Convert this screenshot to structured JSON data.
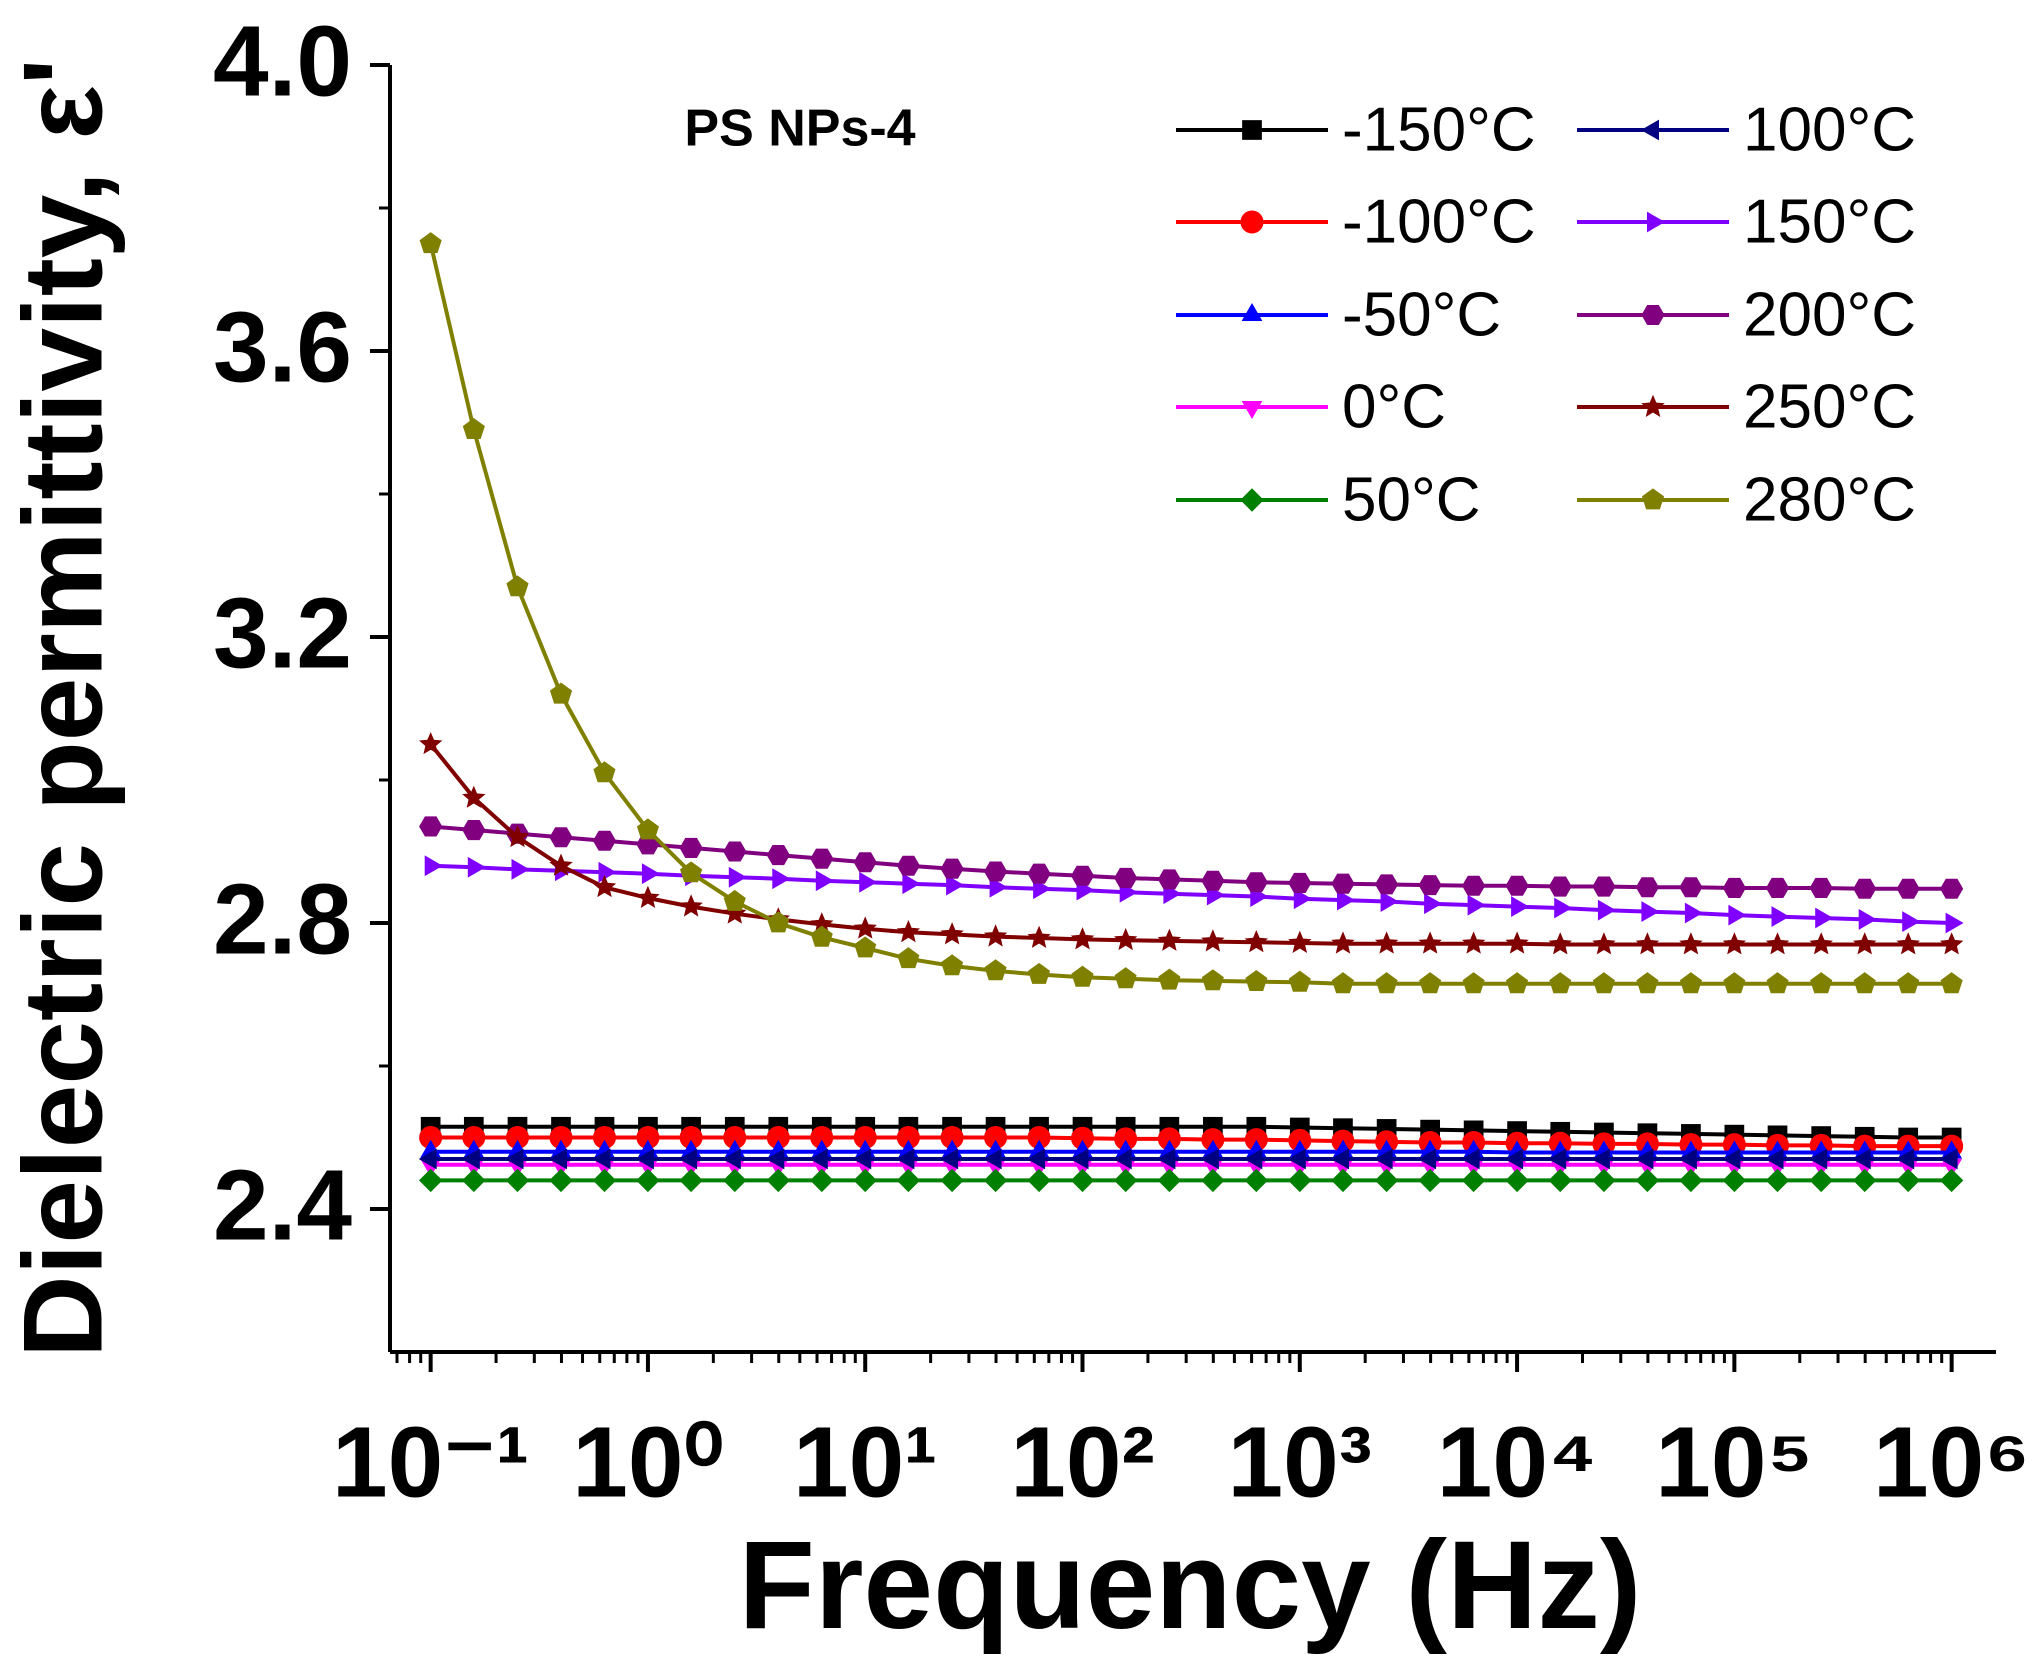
{
  "chart_data": {
    "type": "line",
    "title": "PS NPs-4",
    "xlabel": "Frequency (Hz)",
    "ylabel": "Dielectric permittivity, ε'",
    "xscale": "log",
    "x": [
      0.1,
      0.158,
      0.251,
      0.398,
      0.631,
      1,
      1.58,
      2.51,
      3.98,
      6.31,
      10,
      15.8,
      25.1,
      39.8,
      63.1,
      100,
      158,
      251,
      398,
      631,
      1000,
      1580,
      2510,
      3980,
      6310,
      10000,
      15800,
      25100,
      39800,
      63100,
      100000,
      158000,
      251000,
      398000,
      631000,
      1000000
    ],
    "xlim": [
      0.065,
      1600000
    ],
    "xticks": [
      {
        "value": 0.1,
        "label": "10⁻¹"
      },
      {
        "value": 1,
        "label": "10⁰"
      },
      {
        "value": 10,
        "label": "10¹"
      },
      {
        "value": 100,
        "label": "10²"
      },
      {
        "value": 1000,
        "label": "10³"
      },
      {
        "value": 10000,
        "label": "10⁴"
      },
      {
        "value": 100000,
        "label": "10⁵"
      },
      {
        "value": 1000000,
        "label": "10⁶"
      }
    ],
    "ylim": [
      2.2,
      4.0
    ],
    "yticks": [
      2.4,
      2.8,
      3.2,
      3.6,
      {
        "value": 4,
        "label": "4.0"
      }
    ],
    "grid": false,
    "legend": "upper right",
    "series": [
      {
        "name": "-150°C",
        "color": "#000000",
        "marker": "square",
        "values": [
          2.515,
          2.515,
          2.515,
          2.515,
          2.515,
          2.515,
          2.515,
          2.515,
          2.515,
          2.515,
          2.515,
          2.515,
          2.515,
          2.515,
          2.515,
          2.515,
          2.515,
          2.515,
          2.515,
          2.515,
          2.514,
          2.513,
          2.512,
          2.511,
          2.51,
          2.509,
          2.508,
          2.507,
          2.506,
          2.505,
          2.504,
          2.503,
          2.502,
          2.501,
          2.5,
          2.5
        ]
      },
      {
        "name": "-100°C",
        "color": "#ff0000",
        "marker": "circle",
        "values": [
          2.5,
          2.5,
          2.5,
          2.5,
          2.5,
          2.5,
          2.5,
          2.5,
          2.5,
          2.5,
          2.5,
          2.5,
          2.5,
          2.5,
          2.5,
          2.499,
          2.498,
          2.498,
          2.497,
          2.497,
          2.496,
          2.495,
          2.494,
          2.493,
          2.493,
          2.492,
          2.492,
          2.491,
          2.491,
          2.49,
          2.49,
          2.489,
          2.489,
          2.488,
          2.488,
          2.488
        ]
      },
      {
        "name": "-50°C",
        "color": "#0000ff",
        "marker": "triangle-up",
        "values": [
          2.48,
          2.48,
          2.48,
          2.48,
          2.48,
          2.48,
          2.48,
          2.48,
          2.48,
          2.48,
          2.48,
          2.48,
          2.48,
          2.48,
          2.48,
          2.48,
          2.48,
          2.48,
          2.48,
          2.48,
          2.48,
          2.48,
          2.48,
          2.48,
          2.48,
          2.479,
          2.479,
          2.479,
          2.479,
          2.479,
          2.479,
          2.479,
          2.479,
          2.479,
          2.479,
          2.479
        ]
      },
      {
        "name": "0°C",
        "color": "#ff00ff",
        "marker": "triangle-down",
        "values": [
          2.462,
          2.462,
          2.462,
          2.462,
          2.462,
          2.462,
          2.462,
          2.462,
          2.462,
          2.462,
          2.462,
          2.462,
          2.462,
          2.462,
          2.462,
          2.462,
          2.462,
          2.462,
          2.462,
          2.462,
          2.462,
          2.462,
          2.462,
          2.462,
          2.462,
          2.462,
          2.462,
          2.462,
          2.462,
          2.462,
          2.462,
          2.462,
          2.462,
          2.462,
          2.462,
          2.462
        ]
      },
      {
        "name": "50°C",
        "color": "#008000",
        "marker": "diamond",
        "values": [
          2.44,
          2.44,
          2.44,
          2.44,
          2.44,
          2.44,
          2.44,
          2.44,
          2.44,
          2.44,
          2.44,
          2.44,
          2.44,
          2.44,
          2.44,
          2.44,
          2.44,
          2.44,
          2.44,
          2.44,
          2.44,
          2.44,
          2.44,
          2.44,
          2.44,
          2.44,
          2.44,
          2.44,
          2.44,
          2.44,
          2.44,
          2.44,
          2.44,
          2.44,
          2.44,
          2.44
        ]
      },
      {
        "name": "100°C",
        "color": "#000080",
        "marker": "triangle-left",
        "values": [
          2.47,
          2.47,
          2.47,
          2.47,
          2.47,
          2.47,
          2.47,
          2.47,
          2.47,
          2.47,
          2.47,
          2.47,
          2.47,
          2.47,
          2.47,
          2.47,
          2.47,
          2.47,
          2.47,
          2.47,
          2.47,
          2.47,
          2.47,
          2.47,
          2.47,
          2.47,
          2.47,
          2.47,
          2.47,
          2.47,
          2.47,
          2.47,
          2.47,
          2.47,
          2.47,
          2.47
        ]
      },
      {
        "name": "150°C",
        "color": "#8000ff",
        "marker": "triangle-right",
        "values": [
          2.88,
          2.878,
          2.875,
          2.873,
          2.871,
          2.869,
          2.866,
          2.864,
          2.862,
          2.859,
          2.857,
          2.855,
          2.853,
          2.85,
          2.848,
          2.846,
          2.843,
          2.841,
          2.839,
          2.837,
          2.834,
          2.832,
          2.83,
          2.827,
          2.825,
          2.823,
          2.821,
          2.818,
          2.816,
          2.814,
          2.811,
          2.809,
          2.807,
          2.805,
          2.802,
          2.8
        ]
      },
      {
        "name": "200°C",
        "color": "#800080",
        "marker": "hexagon",
        "values": [
          2.935,
          2.93,
          2.925,
          2.92,
          2.915,
          2.91,
          2.905,
          2.9,
          2.895,
          2.89,
          2.885,
          2.88,
          2.876,
          2.872,
          2.869,
          2.866,
          2.863,
          2.861,
          2.859,
          2.857,
          2.856,
          2.855,
          2.854,
          2.853,
          2.852,
          2.852,
          2.851,
          2.851,
          2.85,
          2.85,
          2.849,
          2.849,
          2.849,
          2.848,
          2.848,
          2.848
        ]
      },
      {
        "name": "250°C",
        "color": "#800000",
        "marker": "star",
        "values": [
          3.05,
          2.975,
          2.92,
          2.88,
          2.85,
          2.835,
          2.823,
          2.813,
          2.805,
          2.798,
          2.792,
          2.787,
          2.784,
          2.781,
          2.779,
          2.777,
          2.776,
          2.775,
          2.774,
          2.773,
          2.772,
          2.771,
          2.771,
          2.771,
          2.771,
          2.771,
          2.77,
          2.77,
          2.77,
          2.77,
          2.77,
          2.77,
          2.77,
          2.77,
          2.77,
          2.77
        ]
      },
      {
        "name": "280°C",
        "color": "#808000",
        "marker": "pentagon",
        "values": [
          3.75,
          3.49,
          3.27,
          3.12,
          3.01,
          2.93,
          2.87,
          2.83,
          2.8,
          2.78,
          2.765,
          2.75,
          2.74,
          2.733,
          2.728,
          2.724,
          2.722,
          2.72,
          2.719,
          2.718,
          2.717,
          2.715,
          2.715,
          2.715,
          2.715,
          2.715,
          2.715,
          2.715,
          2.715,
          2.715,
          2.715,
          2.715,
          2.715,
          2.715,
          2.715,
          2.715
        ]
      }
    ]
  }
}
